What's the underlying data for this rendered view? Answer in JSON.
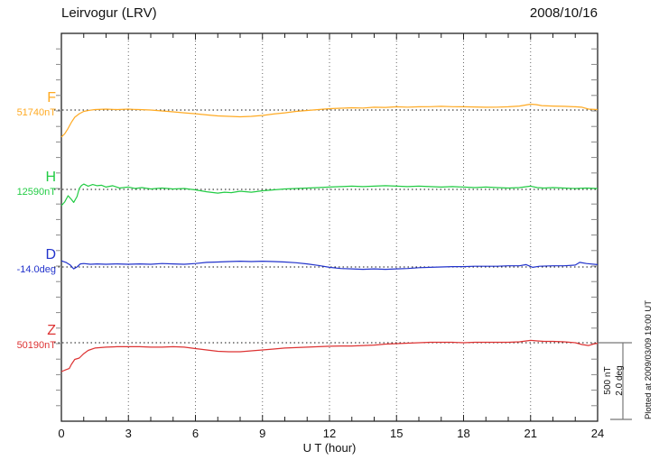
{
  "header": {
    "title": "Leirvogur (LRV)",
    "date": "2008/10/16"
  },
  "chart_data": {
    "type": "line",
    "title": "Leirvogur (LRV)",
    "date": "2008/10/16",
    "xlabel": "U T (hour)",
    "x_range": [
      0,
      24
    ],
    "x_ticks": [
      0,
      3,
      6,
      9,
      12,
      15,
      18,
      21,
      24
    ],
    "x_minor_tick_hours": 1,
    "grid": "vertical dotted lines every 3 hours; dotted horizontal baseline per trace",
    "legend_position": "left",
    "scale_bar": {
      "nT_label": "500 nT",
      "deg_label": "2.0 deg",
      "nT_per_div": 500,
      "deg_per_div": 2.0
    },
    "plotted_at": "Plotted at 2009/03/09 19:00 UT",
    "series": [
      {
        "name": "F",
        "unit": "nT",
        "baseline_value": 51740,
        "baseline_label": "51740nT",
        "color": "#ffaa22",
        "points": [
          [
            0,
            51564
          ],
          [
            0.15,
            51585
          ],
          [
            0.3,
            51620
          ],
          [
            0.45,
            51660
          ],
          [
            0.6,
            51693
          ],
          [
            0.8,
            51716
          ],
          [
            1,
            51731
          ],
          [
            1.25,
            51738
          ],
          [
            1.5,
            51743
          ],
          [
            2,
            51746
          ],
          [
            2.5,
            51743
          ],
          [
            3,
            51746
          ],
          [
            3.25,
            51744
          ],
          [
            3.5,
            51743
          ],
          [
            4,
            51740
          ],
          [
            4.5,
            51734
          ],
          [
            5,
            51728
          ],
          [
            5.5,
            51722
          ],
          [
            6,
            51716
          ],
          [
            6.5,
            51708
          ],
          [
            7,
            51702
          ],
          [
            7.5,
            51699
          ],
          [
            8,
            51696
          ],
          [
            8.5,
            51699
          ],
          [
            9,
            51705
          ],
          [
            9.5,
            51714
          ],
          [
            10,
            51722
          ],
          [
            10.5,
            51731
          ],
          [
            11,
            51737
          ],
          [
            11.5,
            51743
          ],
          [
            12,
            51749
          ],
          [
            12.5,
            51752
          ],
          [
            13,
            51755
          ],
          [
            13.5,
            51753
          ],
          [
            14,
            51758
          ],
          [
            14.5,
            51757
          ],
          [
            15,
            51761
          ],
          [
            15.5,
            51759
          ],
          [
            16,
            51761
          ],
          [
            16.5,
            51762
          ],
          [
            17,
            51764
          ],
          [
            17.5,
            51762
          ],
          [
            18,
            51761
          ],
          [
            18.5,
            51760
          ],
          [
            19,
            51758
          ],
          [
            19.5,
            51759
          ],
          [
            20,
            51761
          ],
          [
            20.5,
            51766
          ],
          [
            21,
            51778
          ],
          [
            21.25,
            51775
          ],
          [
            21.5,
            51769
          ],
          [
            22,
            51766
          ],
          [
            22.5,
            51764
          ],
          [
            23,
            51761
          ],
          [
            23.3,
            51758
          ],
          [
            23.6,
            51746
          ],
          [
            24,
            51743
          ]
        ]
      },
      {
        "name": "H",
        "unit": "nT",
        "baseline_value": 12590,
        "baseline_label": "12590nT",
        "color": "#22cc44",
        "points": [
          [
            0,
            12484
          ],
          [
            0.15,
            12508
          ],
          [
            0.3,
            12549
          ],
          [
            0.45,
            12525
          ],
          [
            0.55,
            12505
          ],
          [
            0.7,
            12543
          ],
          [
            0.8,
            12596
          ],
          [
            0.9,
            12616
          ],
          [
            1,
            12625
          ],
          [
            1.2,
            12611
          ],
          [
            1.4,
            12622
          ],
          [
            1.6,
            12614
          ],
          [
            1.8,
            12617
          ],
          [
            2,
            12605
          ],
          [
            2.3,
            12614
          ],
          [
            2.6,
            12599
          ],
          [
            3,
            12605
          ],
          [
            3.3,
            12596
          ],
          [
            3.6,
            12602
          ],
          [
            4,
            12593
          ],
          [
            4.5,
            12599
          ],
          [
            5,
            12593
          ],
          [
            5.5,
            12596
          ],
          [
            6,
            12587
          ],
          [
            6.5,
            12575
          ],
          [
            7,
            12566
          ],
          [
            7.3,
            12572
          ],
          [
            7.6,
            12569
          ],
          [
            8,
            12578
          ],
          [
            8.5,
            12572
          ],
          [
            9,
            12581
          ],
          [
            9.5,
            12587
          ],
          [
            10,
            12593
          ],
          [
            10.5,
            12596
          ],
          [
            11,
            12599
          ],
          [
            11.5,
            12602
          ],
          [
            12,
            12605
          ],
          [
            12.5,
            12608
          ],
          [
            13,
            12611
          ],
          [
            13.5,
            12608
          ],
          [
            14,
            12611
          ],
          [
            14.5,
            12614
          ],
          [
            15,
            12611
          ],
          [
            15.5,
            12608
          ],
          [
            16,
            12611
          ],
          [
            16.5,
            12608
          ],
          [
            17,
            12605
          ],
          [
            17.5,
            12608
          ],
          [
            18,
            12605
          ],
          [
            18.5,
            12602
          ],
          [
            19,
            12605
          ],
          [
            19.5,
            12602
          ],
          [
            20,
            12599
          ],
          [
            20.5,
            12602
          ],
          [
            21,
            12611
          ],
          [
            21.3,
            12602
          ],
          [
            21.6,
            12599
          ],
          [
            22,
            12602
          ],
          [
            22.5,
            12599
          ],
          [
            23,
            12596
          ],
          [
            23.5,
            12599
          ],
          [
            24,
            12596
          ]
        ]
      },
      {
        "name": "D",
        "unit": "deg",
        "baseline_value": -14.0,
        "baseline_label": "-14.0deg",
        "color": "#2233cc",
        "points": [
          [
            0,
            -13.84
          ],
          [
            0.2,
            -13.88
          ],
          [
            0.4,
            -13.95
          ],
          [
            0.55,
            -14.05
          ],
          [
            0.7,
            -14.0
          ],
          [
            0.85,
            -13.92
          ],
          [
            1,
            -13.91
          ],
          [
            1.3,
            -13.93
          ],
          [
            1.6,
            -13.92
          ],
          [
            2,
            -13.93
          ],
          [
            2.5,
            -13.92
          ],
          [
            3,
            -13.93
          ],
          [
            3.5,
            -13.92
          ],
          [
            4,
            -13.93
          ],
          [
            4.5,
            -13.91
          ],
          [
            5,
            -13.92
          ],
          [
            5.5,
            -13.93
          ],
          [
            6,
            -13.91
          ],
          [
            6.5,
            -13.88
          ],
          [
            7,
            -13.87
          ],
          [
            7.5,
            -13.86
          ],
          [
            8,
            -13.85
          ],
          [
            8.5,
            -13.86
          ],
          [
            9,
            -13.85
          ],
          [
            9.5,
            -13.86
          ],
          [
            10,
            -13.87
          ],
          [
            10.5,
            -13.89
          ],
          [
            11,
            -13.92
          ],
          [
            11.5,
            -13.96
          ],
          [
            12,
            -14.01
          ],
          [
            12.5,
            -14.04
          ],
          [
            13,
            -14.05
          ],
          [
            13.5,
            -14.06
          ],
          [
            14,
            -14.05
          ],
          [
            14.5,
            -14.06
          ],
          [
            15,
            -14.05
          ],
          [
            15.5,
            -14.04
          ],
          [
            16,
            -14.02
          ],
          [
            16.5,
            -14.01
          ],
          [
            17,
            -14.0
          ],
          [
            17.5,
            -13.99
          ],
          [
            18,
            -13.99
          ],
          [
            18.5,
            -13.98
          ],
          [
            19,
            -13.98
          ],
          [
            19.5,
            -13.98
          ],
          [
            20,
            -13.97
          ],
          [
            20.5,
            -13.97
          ],
          [
            20.8,
            -13.94
          ],
          [
            21.1,
            -14.01
          ],
          [
            21.4,
            -13.98
          ],
          [
            22,
            -13.97
          ],
          [
            22.5,
            -13.97
          ],
          [
            23,
            -13.95
          ],
          [
            23.2,
            -13.88
          ],
          [
            23.5,
            -13.91
          ],
          [
            24,
            -13.94
          ]
        ]
      },
      {
        "name": "Z",
        "unit": "nT",
        "baseline_value": 50190,
        "baseline_label": "50190nT",
        "color": "#dd3333",
        "points": [
          [
            0,
            50002
          ],
          [
            0.2,
            50014
          ],
          [
            0.35,
            50022
          ],
          [
            0.45,
            50049
          ],
          [
            0.6,
            50081
          ],
          [
            0.8,
            50090
          ],
          [
            1,
            50119
          ],
          [
            1.2,
            50140
          ],
          [
            1.5,
            50155
          ],
          [
            2,
            50161
          ],
          [
            2.5,
            50164
          ],
          [
            3,
            50164
          ],
          [
            3.5,
            50164
          ],
          [
            4,
            50161
          ],
          [
            4.5,
            50161
          ],
          [
            5,
            50164
          ],
          [
            5.5,
            50161
          ],
          [
            6,
            50152
          ],
          [
            6.5,
            50143
          ],
          [
            7,
            50134
          ],
          [
            7.5,
            50131
          ],
          [
            8,
            50131
          ],
          [
            8.5,
            50137
          ],
          [
            9,
            50143
          ],
          [
            9.5,
            50149
          ],
          [
            10,
            50155
          ],
          [
            10.5,
            50158
          ],
          [
            11,
            50161
          ],
          [
            11.5,
            50164
          ],
          [
            12,
            50167
          ],
          [
            12.5,
            50169
          ],
          [
            13,
            50169
          ],
          [
            13.5,
            50172
          ],
          [
            14,
            50175
          ],
          [
            14.5,
            50181
          ],
          [
            15,
            50184
          ],
          [
            15.5,
            50187
          ],
          [
            16,
            50190
          ],
          [
            16.5,
            50193
          ],
          [
            17,
            50193
          ],
          [
            17.5,
            50193
          ],
          [
            18,
            50190
          ],
          [
            18.5,
            50193
          ],
          [
            19,
            50193
          ],
          [
            19.5,
            50193
          ],
          [
            20,
            50193
          ],
          [
            20.5,
            50196
          ],
          [
            21,
            50205
          ],
          [
            21.3,
            50202
          ],
          [
            21.6,
            50199
          ],
          [
            22,
            50199
          ],
          [
            22.5,
            50196
          ],
          [
            23,
            50190
          ],
          [
            23.3,
            50178
          ],
          [
            23.6,
            50172
          ],
          [
            23.8,
            50181
          ],
          [
            24,
            50187
          ]
        ]
      }
    ]
  }
}
